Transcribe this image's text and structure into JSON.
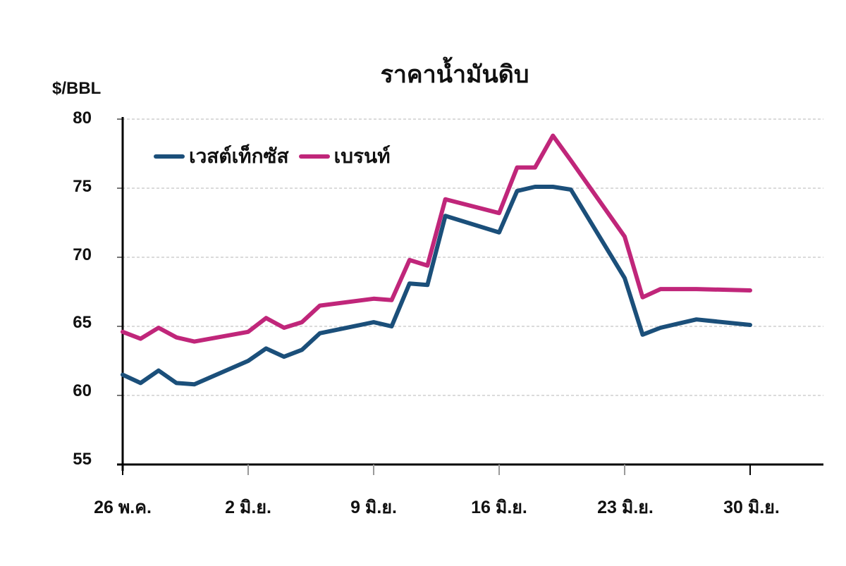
{
  "chart_data": {
    "type": "line",
    "title": "ราคาน้ำมันดิบ",
    "ylabel": "$/BBL",
    "xlabel": "",
    "ylim": [
      55,
      80
    ],
    "yticks": [
      "80",
      "75",
      "70",
      "65",
      "60",
      "55"
    ],
    "xtick_labels": [
      "26 พ.ค.",
      "2 มิ.ย.",
      "9 มิ.ย.",
      "16 มิ.ย.",
      "23 มิ.ย.",
      "30 มิ.ย."
    ],
    "grid": true,
    "legend_position": "top-left inside",
    "x": [
      "26 พ.ค.",
      "27 พ.ค.",
      "28 พ.ค.",
      "29 พ.ค.",
      "30 พ.ค.",
      "2 มิ.ย.",
      "3 มิ.ย.",
      "4 มิ.ย.",
      "5 มิ.ย.",
      "6 มิ.ย.",
      "9 มิ.ย.",
      "10 มิ.ย.",
      "11 มิ.ย.",
      "12 มิ.ย.",
      "13 มิ.ย.",
      "16 มิ.ย.",
      "17 มิ.ย.",
      "18 มิ.ย.",
      "19 มิ.ย.",
      "20 มิ.ย.",
      "23 มิ.ย.",
      "24 มิ.ย.",
      "25 มิ.ย.",
      "26 มิ.ย.",
      "27 มิ.ย.",
      "30 มิ.ย."
    ],
    "day_offsets": [
      0,
      1,
      2,
      3,
      4,
      7,
      8,
      9,
      10,
      11,
      14,
      15,
      16,
      17,
      18,
      21,
      22,
      23,
      24,
      25,
      28,
      29,
      30,
      31,
      32,
      35
    ],
    "series": [
      {
        "name": "เวสต์เท็กซัส",
        "color": "#1b4f7a",
        "values": [
          61.5,
          60.9,
          61.8,
          60.9,
          60.8,
          62.5,
          63.4,
          62.8,
          63.3,
          64.5,
          65.3,
          65.0,
          68.1,
          68.0,
          73.0,
          71.8,
          74.8,
          75.1,
          75.1,
          74.9,
          68.5,
          64.4,
          64.9,
          65.2,
          65.5,
          65.1
        ]
      },
      {
        "name": "เบรนท์",
        "color": "#c0267a",
        "values": [
          64.6,
          64.1,
          64.9,
          64.2,
          63.9,
          64.6,
          65.6,
          64.9,
          65.3,
          66.5,
          67.0,
          66.9,
          69.8,
          69.4,
          74.2,
          73.2,
          76.5,
          76.5,
          78.8,
          77.0,
          71.5,
          67.1,
          67.7,
          67.7,
          67.7,
          67.6
        ]
      }
    ]
  }
}
